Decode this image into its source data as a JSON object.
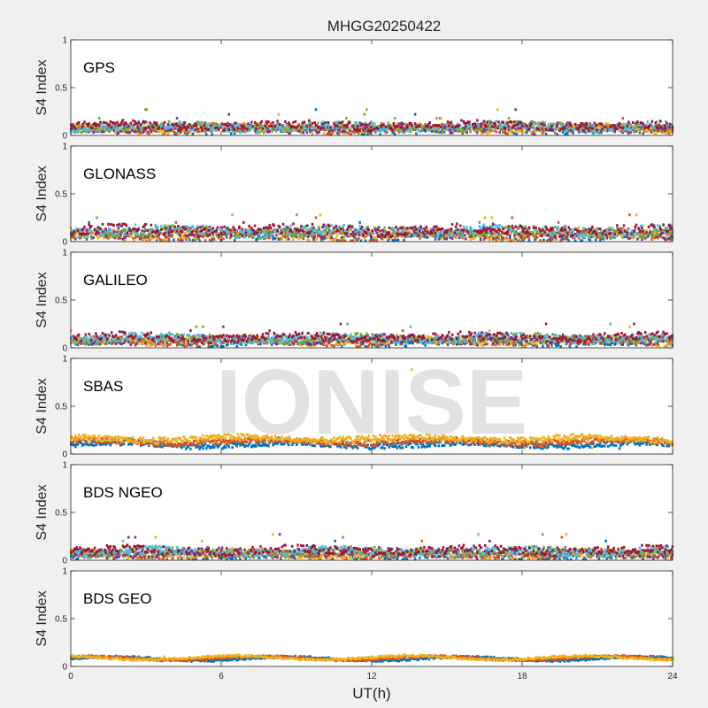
{
  "chart_data": {
    "type": "scatter",
    "title": "MHGG20250422",
    "xlabel": "UT(h)",
    "ylabel": "S4 Index",
    "xlim": [
      0,
      24
    ],
    "ylim": [
      0,
      1
    ],
    "xticks": [
      "0",
      "6",
      "12",
      "18",
      "24"
    ],
    "yticks": [
      "0",
      "0.5",
      "1"
    ],
    "watermark": "IONISE",
    "colors": [
      "#0072bd",
      "#d95319",
      "#edb120",
      "#7e2f8e",
      "#77ac30",
      "#4dbeee",
      "#a2142f"
    ],
    "panels": [
      {
        "label": "GPS",
        "n_series": 7,
        "baseline": [
          0.06,
          0.1
        ],
        "spread": 0.04,
        "spikes": [
          0.18,
          0.22,
          0.27
        ]
      },
      {
        "label": "GLONASS",
        "n_series": 7,
        "baseline": [
          0.06,
          0.12
        ],
        "spread": 0.05,
        "spikes": [
          0.2,
          0.25,
          0.28
        ]
      },
      {
        "label": "GALILEO",
        "n_series": 7,
        "baseline": [
          0.06,
          0.11
        ],
        "spread": 0.04,
        "spikes": [
          0.18,
          0.22,
          0.25
        ]
      },
      {
        "label": "SBAS",
        "n_series": 3,
        "baseline": [
          0.1,
          0.16
        ],
        "spread": 0.03,
        "spikes": [
          0.22,
          0.25,
          0.88
        ]
      },
      {
        "label": "BDS NGEO",
        "n_series": 7,
        "baseline": [
          0.05,
          0.1
        ],
        "spread": 0.04,
        "spikes": [
          0.2,
          0.24,
          0.27
        ]
      },
      {
        "label": "BDS GEO",
        "n_series": 3,
        "baseline": [
          0.08,
          0.09
        ],
        "spread": 0.01,
        "spikes": [
          0.1,
          0.11
        ]
      }
    ]
  }
}
